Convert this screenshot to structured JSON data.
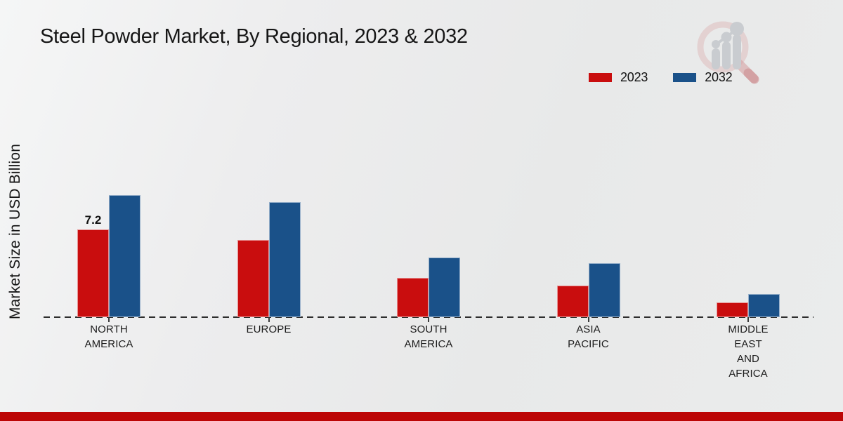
{
  "title": "Steel Powder Market, By Regional, 2023 & 2032",
  "y_axis_label": "Market Size in USD Billion",
  "legend": {
    "position": "top-right",
    "items": [
      {
        "label": "2023",
        "color": "#c90d0e"
      },
      {
        "label": "2032",
        "color": "#1a5189"
      }
    ]
  },
  "footer": {
    "accent_color": "#bc0606"
  },
  "watermark": {
    "description": "magnifying glass over rising bar chart logo"
  },
  "chart_data": {
    "type": "bar",
    "title": "Steel Powder Market, By Regional, 2023 & 2032",
    "xlabel": "",
    "ylabel": "Market Size in USD Billion",
    "grid": false,
    "y_axis_visible": false,
    "zero_line_style": "dashed",
    "legend_position": "top-right",
    "categories": [
      "NORTH AMERICA",
      "EUROPE",
      "SOUTH AMERICA",
      "ASIA PACIFIC",
      "MIDDLE EAST AND AFRICA"
    ],
    "category_label_lines": [
      [
        "NORTH",
        "AMERICA"
      ],
      [
        "EUROPE"
      ],
      [
        "SOUTH",
        "AMERICA"
      ],
      [
        "ASIA",
        "PACIFIC"
      ],
      [
        "MIDDLE",
        "EAST",
        "AND",
        "AFRICA"
      ]
    ],
    "series": [
      {
        "name": "2023",
        "color": "#c90d0e",
        "values": [
          7.2,
          6.3,
          3.2,
          2.6,
          1.2
        ]
      },
      {
        "name": "2032",
        "color": "#1a5189",
        "values": [
          10.0,
          9.4,
          4.9,
          4.4,
          1.9
        ]
      }
    ],
    "data_labels": [
      {
        "series_index": 0,
        "category_index": 0,
        "text": "7.2"
      }
    ]
  }
}
